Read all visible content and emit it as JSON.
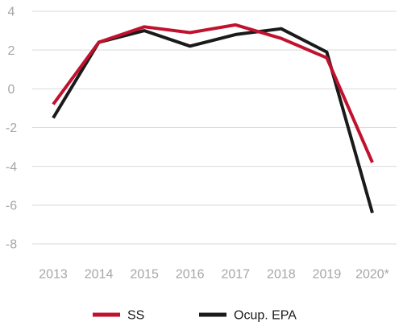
{
  "chart_data": {
    "type": "line",
    "title": "",
    "xlabel": "",
    "ylabel": "",
    "categories": [
      "2013",
      "2014",
      "2015",
      "2016",
      "2017",
      "2018",
      "2019",
      "2020*"
    ],
    "ylim": [
      -8,
      4
    ],
    "yticks": [
      4,
      2,
      0,
      -2,
      -4,
      -6,
      -8
    ],
    "ytick_labels": [
      "4",
      "2",
      "0",
      "-2",
      "-4",
      "-6",
      "-8"
    ],
    "grid": true,
    "legend_position": "bottom",
    "series": [
      {
        "name": "Ocup. EPA",
        "color": "#1a1a1a",
        "values": [
          -1.5,
          2.4,
          3.0,
          2.2,
          2.8,
          3.1,
          1.9,
          -6.4
        ]
      },
      {
        "name": "SS",
        "color": "#c0122e",
        "values": [
          -0.8,
          2.4,
          3.2,
          2.9,
          3.3,
          2.6,
          1.6,
          -3.8
        ]
      }
    ],
    "legend": [
      {
        "name": "SS",
        "color": "#c0122e"
      },
      {
        "name": "Ocup. EPA",
        "color": "#1a1a1a"
      }
    ]
  }
}
